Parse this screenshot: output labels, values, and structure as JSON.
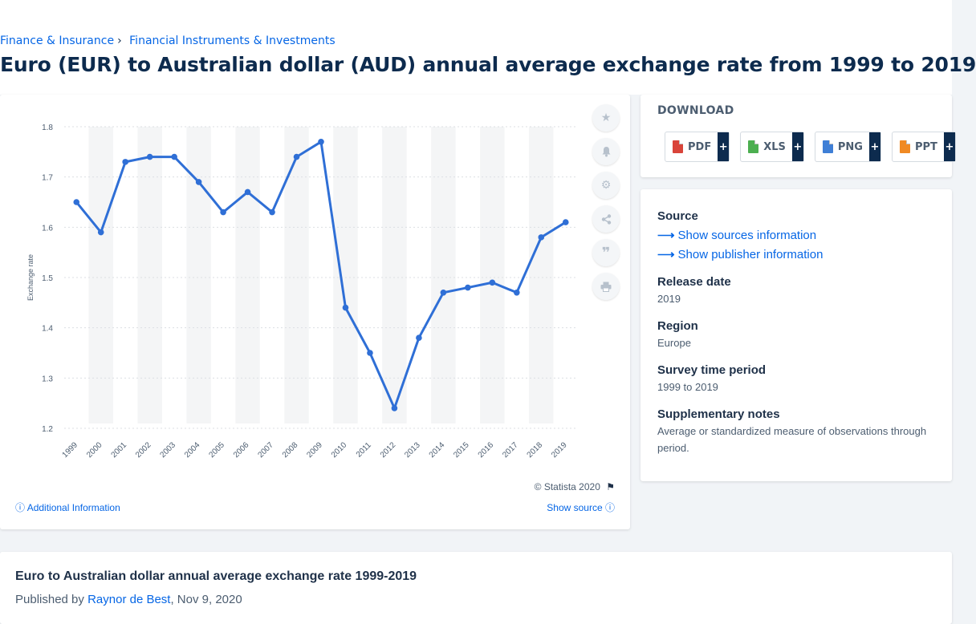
{
  "breadcrumb": {
    "items": [
      "Finance & Insurance",
      "Financial Instruments & Investments"
    ],
    "separator": "›"
  },
  "page_title": "Euro (EUR) to Australian dollar (AUD) annual average exchange rate from 1999 to 2019",
  "chart_toolbar": {
    "icons": [
      "star-icon",
      "bell-icon",
      "gear-icon",
      "share-icon",
      "quote-icon",
      "print-icon"
    ]
  },
  "chart_footer": {
    "copyright": "© Statista 2020",
    "additional_info": "Additional Information",
    "show_source": "Show source"
  },
  "download": {
    "title": "DOWNLOAD",
    "buttons": [
      {
        "label": "PDF",
        "plus": "+",
        "icon_color": "#d9443a"
      },
      {
        "label": "XLS",
        "plus": "+",
        "icon_color": "#4caf50"
      },
      {
        "label": "PNG",
        "plus": "+",
        "icon_color": "#3f7fd6"
      },
      {
        "label": "PPT",
        "plus": "+",
        "icon_color": "#f08a24"
      }
    ]
  },
  "details": {
    "source_heading": "Source",
    "show_sources": "Show sources information",
    "show_publisher": "Show publisher information",
    "release_heading": "Release date",
    "release_value": "2019",
    "region_heading": "Region",
    "region_value": "Europe",
    "survey_heading": "Survey time period",
    "survey_value": "1999 to 2019",
    "notes_heading": "Supplementary notes",
    "notes_value": "Average or standardized measure of observations through period."
  },
  "publication": {
    "title": "Euro to Australian dollar annual average exchange rate 1999-2019",
    "published_by": "Published by",
    "author": "Raynor de Best",
    "date": ", Nov 9, 2020"
  },
  "colors": {
    "line": "#2f6fd6",
    "link": "#0666e5",
    "title": "#0d2b4e"
  },
  "chart_data": {
    "type": "line",
    "categories": [
      "1999",
      "2000",
      "2001",
      "2002",
      "2003",
      "2004",
      "2005",
      "2006",
      "2007",
      "2008",
      "2009",
      "2010",
      "2011",
      "2012",
      "2013",
      "2014",
      "2015",
      "2016",
      "2017",
      "2018",
      "2019"
    ],
    "values": [
      1.65,
      1.59,
      1.73,
      1.74,
      1.74,
      1.69,
      1.63,
      1.67,
      1.63,
      1.74,
      1.77,
      1.44,
      1.35,
      1.24,
      1.38,
      1.47,
      1.48,
      1.49,
      1.47,
      1.58,
      1.61
    ],
    "ylabel": "Exchange rate",
    "yticks": [
      1.2,
      1.3,
      1.4,
      1.5,
      1.6,
      1.7,
      1.8
    ],
    "ylim": [
      1.2,
      1.8
    ],
    "grid": true,
    "legend": "none"
  }
}
